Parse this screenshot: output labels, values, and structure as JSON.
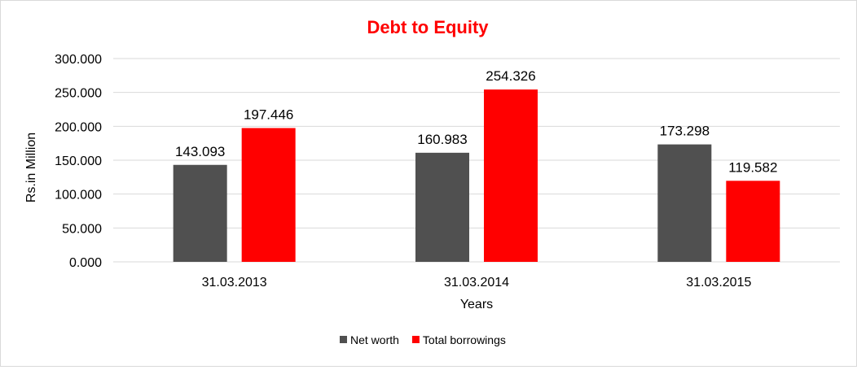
{
  "chart_data": {
    "type": "bar",
    "title": "Debt to Equity",
    "xlabel": "Years",
    "ylabel": "Rs.in Million",
    "categories": [
      "31.03.2013",
      "31.03.2014",
      "31.03.2015"
    ],
    "series": [
      {
        "name": "Net worth",
        "color": "#505050",
        "values": [
          143.093,
          160.983,
          173.298
        ],
        "labels": [
          "143.093",
          "160.983",
          "173.298"
        ]
      },
      {
        "name": "Total borrowings",
        "color": "#ff0000",
        "values": [
          197.446,
          254.326,
          119.582
        ],
        "labels": [
          "197.446",
          "254.326",
          "119.582"
        ]
      }
    ],
    "ylim": [
      0,
      300
    ],
    "yticks": [
      0,
      50,
      100,
      150,
      200,
      250,
      300
    ],
    "ytick_labels": [
      "0.000",
      "50.000",
      "100.000",
      "150.000",
      "200.000",
      "250.000",
      "300.000"
    ],
    "grid": true,
    "legend_position": "bottom",
    "colors": {
      "title": "#ff0000",
      "grid": "#d9d9d9",
      "axis": "#d9d9d9",
      "text": "#000000"
    }
  }
}
